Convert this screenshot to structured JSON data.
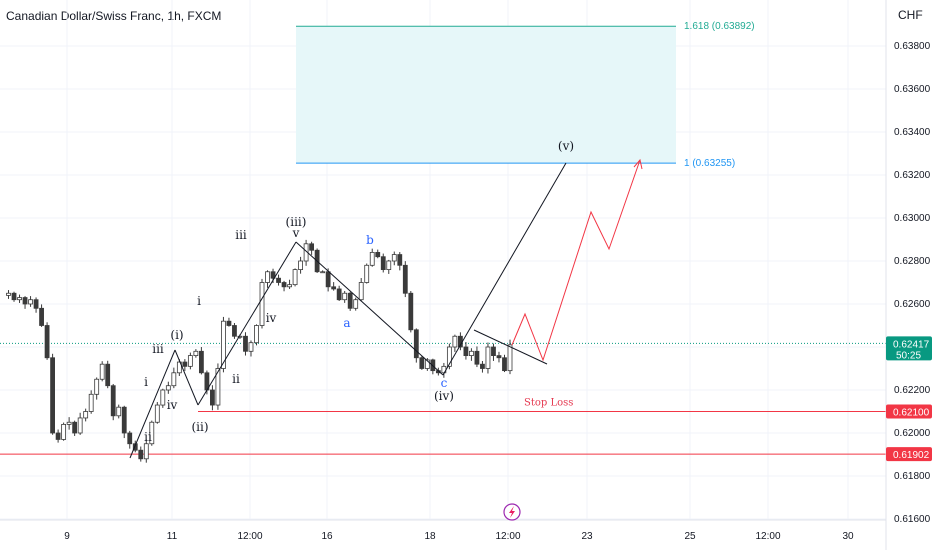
{
  "header": {
    "title": "Canadian Dollar/Swiss Franc, 1h, FXCM",
    "currency": "CHF"
  },
  "colors": {
    "up": "#26a69a",
    "down": "#ef5350",
    "candle": "#3a3a3a",
    "stop_line": "#f23645",
    "fib_line": "#22ab94",
    "fib_zone": "#e6f7f9",
    "projection": "#f23645",
    "wave_line": "#131722",
    "current_price_badge": "#089981"
  },
  "chart_data": {
    "type": "candlestick",
    "symbol": "CADCHF",
    "timeframe": "1h",
    "ylim": [
      0.616,
      0.64
    ],
    "y_ticks": [
      "0.63800",
      "0.63600",
      "0.63400",
      "0.63200",
      "0.63000",
      "0.62800",
      "0.62600",
      "0.62400",
      "0.62200",
      "0.62000",
      "0.61800",
      "0.61600"
    ],
    "x_ticks": [
      "9",
      "11",
      "12:00",
      "16",
      "18",
      "12:00",
      "23",
      "25",
      "12:00",
      "30"
    ],
    "price_path": [
      0.6264,
      0.6265,
      0.6262,
      0.6263,
      0.626,
      0.6262,
      0.6258,
      0.625,
      0.6235,
      0.62,
      0.6197,
      0.6204,
      0.6205,
      0.62,
      0.6207,
      0.621,
      0.6218,
      0.6225,
      0.6232,
      0.6222,
      0.6208,
      0.6212,
      0.62,
      0.6195,
      0.6192,
      0.6188,
      0.6195,
      0.6205,
      0.6213,
      0.622,
      0.6222,
      0.6228,
      0.6233,
      0.6231,
      0.6236,
      0.6238,
      0.6228,
      0.622,
      0.6213,
      0.623,
      0.6252,
      0.625,
      0.6245,
      0.6245,
      0.6238,
      0.6242,
      0.625,
      0.627,
      0.6275,
      0.6272,
      0.627,
      0.6268,
      0.6269,
      0.6276,
      0.628,
      0.6288,
      0.6285,
      0.6275,
      0.6275,
      0.6268,
      0.6267,
      0.6262,
      0.6265,
      0.6258,
      0.6262,
      0.627,
      0.6278,
      0.6284,
      0.6282,
      0.6276,
      0.628,
      0.6283,
      0.6278,
      0.6265,
      0.6248,
      0.6235,
      0.623,
      0.6234,
      0.6229,
      0.6228,
      0.6231,
      0.624,
      0.6245,
      0.624,
      0.6236,
      0.6238,
      0.6232,
      0.623,
      0.624,
      0.6236,
      0.6235,
      0.6229,
      0.6241
    ],
    "stop_loss": {
      "price": 0.621,
      "label": "Stop Loss"
    },
    "support": {
      "price": 0.61902
    },
    "current_price": {
      "price": 0.62417,
      "countdown": "50:25"
    },
    "fib_levels": [
      {
        "ratio": "1.618",
        "price": 0.63892,
        "label": "1.618 (0.63892)"
      },
      {
        "ratio": "1",
        "price": 0.63255,
        "label": "1 (0.63255)"
      }
    ],
    "waves": [
      {
        "label": "ii",
        "style": "dark"
      },
      {
        "label": "i",
        "style": "dark"
      },
      {
        "label": "iii",
        "style": "dark"
      },
      {
        "label": "iv",
        "style": "dark"
      },
      {
        "label": "(i)",
        "style": "dark"
      },
      {
        "label": "(ii)",
        "style": "dark"
      },
      {
        "label": "i",
        "style": "dark"
      },
      {
        "label": "ii",
        "style": "dark"
      },
      {
        "label": "iii",
        "style": "dark"
      },
      {
        "label": "iv",
        "style": "dark"
      },
      {
        "label": "v",
        "style": "dark"
      },
      {
        "label": "(iii)",
        "style": "dark"
      },
      {
        "label": "a",
        "style": "blue"
      },
      {
        "label": "b",
        "style": "blue"
      },
      {
        "label": "c",
        "style": "blue"
      },
      {
        "label": "(iv)",
        "style": "dark"
      },
      {
        "label": "(v)",
        "style": "dark"
      }
    ]
  }
}
